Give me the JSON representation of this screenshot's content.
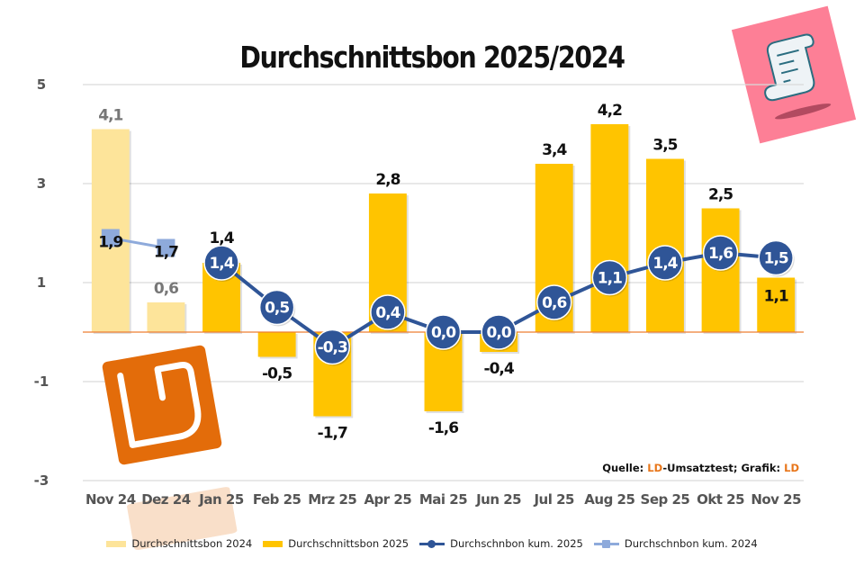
{
  "chart_data": {
    "type": "bar",
    "title": "Durchschnittsbon 2025/2024",
    "xlabel": "",
    "ylabel": "",
    "ylim": [
      -3,
      5
    ],
    "yticks": [
      5,
      3,
      1,
      -1,
      -3
    ],
    "ytick_labels": [
      "5",
      "3",
      "1",
      "-1",
      "-3"
    ],
    "grid": true,
    "legend_position": "bottom",
    "categories": [
      "Nov 24",
      "Dez 24",
      "Jan 25",
      "Feb 25",
      "Mrz 25",
      "Apr 25",
      "Mai 25",
      "Jun 25",
      "Jul 25",
      "Aug 25",
      "Sep 25",
      "Okt 25",
      "Nov 25"
    ],
    "series": [
      {
        "name": "Durchschnittsbon 2024",
        "kind": "bar",
        "color": "#fde49a",
        "values": [
          4.1,
          0.6,
          null,
          null,
          null,
          null,
          null,
          null,
          null,
          null,
          null,
          null,
          null
        ],
        "labels": [
          "4,1",
          "0,6",
          "",
          "",
          "",
          "",
          "",
          "",
          "",
          "",
          "",
          "",
          ""
        ]
      },
      {
        "name": "Durchschnittsbon 2025",
        "kind": "bar",
        "color": "#ffc400",
        "values": [
          null,
          null,
          1.4,
          -0.5,
          -1.7,
          2.8,
          -1.6,
          -0.4,
          3.4,
          4.2,
          3.5,
          2.5,
          1.1
        ],
        "labels": [
          "",
          "",
          "1,4",
          "-0,5",
          "-1,7",
          "2,8",
          "-1,6",
          "-0,4",
          "3,4",
          "4,2",
          "3,5",
          "2,5",
          "1,1"
        ]
      },
      {
        "name": "Durchschnbon kum. 2025",
        "kind": "line",
        "color": "#2f5597",
        "values": [
          null,
          null,
          1.4,
          0.5,
          -0.3,
          0.4,
          0.0,
          0.0,
          0.6,
          1.1,
          1.4,
          1.6,
          1.5
        ],
        "labels": [
          "",
          "",
          "1,4",
          "0,5",
          "-0,3",
          "0,4",
          "0,0",
          "0,0",
          "0,6",
          "1,1",
          "1,4",
          "1,6",
          "1,5"
        ]
      },
      {
        "name": "Durchschnbon kum. 2024",
        "kind": "line",
        "color": "#8eaadb",
        "values": [
          1.9,
          1.7,
          null,
          null,
          null,
          null,
          null,
          null,
          null,
          null,
          null,
          null,
          null
        ],
        "labels": [
          "1,9",
          "1,7",
          "",
          "",
          "",
          "",
          "",
          "",
          "",
          "",
          "",
          "",
          ""
        ]
      }
    ]
  },
  "source": {
    "prefix": "Quelle: ",
    "ld1": "LD",
    "mid": "-Umsatztest; Grafik: ",
    "ld2": "LD"
  },
  "colors": {
    "zero_line": "#ed7d31",
    "grid": "#d9d9d9",
    "logo_orange": "#e36c0a",
    "receipt_card": "#fd7f96"
  }
}
